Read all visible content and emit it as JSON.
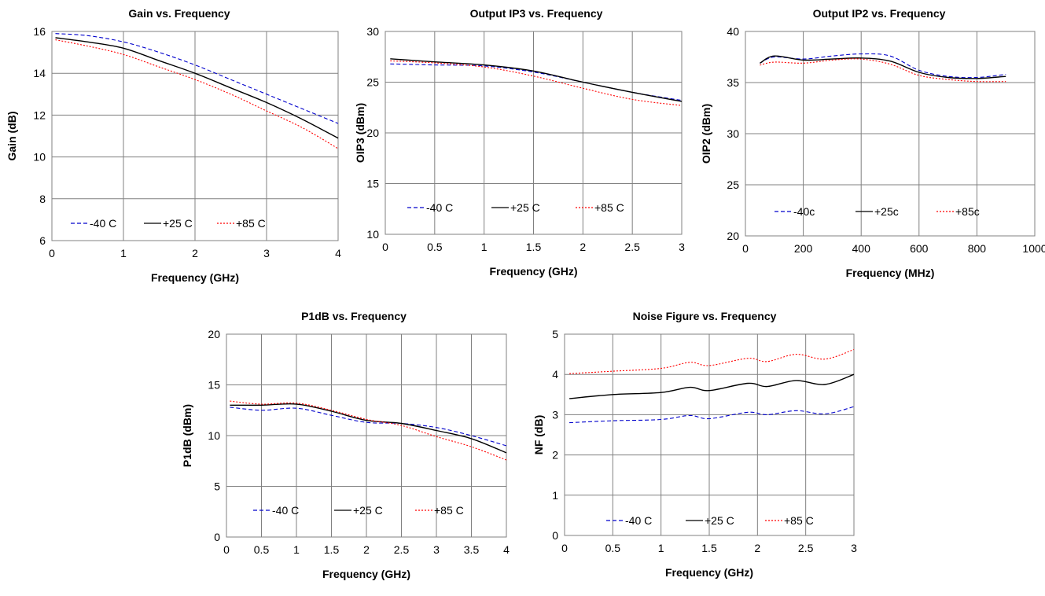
{
  "chart_data": [
    {
      "type": "line",
      "title": "Gain vs. Frequency",
      "xlabel": "Frequency (GHz)",
      "ylabel": "Gain (dB)",
      "xlim": [
        0,
        4
      ],
      "ylim": [
        6,
        16
      ],
      "xticks": [
        "0",
        "1",
        "2",
        "3",
        "4"
      ],
      "yticks": [
        "6",
        "8",
        "10",
        "12",
        "14",
        "16"
      ],
      "grid": true,
      "legend_position": "bottom-left",
      "x": [
        0.05,
        0.5,
        1.0,
        1.5,
        2.0,
        2.5,
        3.0,
        3.5,
        4.0
      ],
      "series": [
        {
          "name": "-40 C",
          "color": "#0000cc",
          "dash": "5,3",
          "values": [
            15.9,
            15.8,
            15.5,
            15.0,
            14.4,
            13.7,
            13.0,
            12.3,
            11.6
          ]
        },
        {
          "name": "+25 C",
          "color": "#000000",
          "dash": "",
          "values": [
            15.7,
            15.5,
            15.2,
            14.6,
            14.0,
            13.3,
            12.6,
            11.8,
            10.9
          ]
        },
        {
          "name": "+85 C",
          "color": "#ff0000",
          "dash": "2,2",
          "values": [
            15.6,
            15.3,
            14.9,
            14.3,
            13.7,
            13.0,
            12.2,
            11.4,
            10.4
          ]
        }
      ]
    },
    {
      "type": "line",
      "title": "Output IP3 vs. Frequency",
      "xlabel": "Frequency (GHz)",
      "ylabel": "OIP3 (dBm)",
      "xlim": [
        0,
        3
      ],
      "ylim": [
        10,
        30
      ],
      "xticks": [
        "0",
        "0.5",
        "1",
        "1.5",
        "2",
        "2.5",
        "3"
      ],
      "yticks": [
        "10",
        "15",
        "20",
        "25",
        "30"
      ],
      "grid": true,
      "legend_position": "bottom",
      "x": [
        0.05,
        0.5,
        1.0,
        1.5,
        2.0,
        2.5,
        3.0
      ],
      "series": [
        {
          "name": "-40 C",
          "color": "#0000cc",
          "dash": "5,3",
          "values": [
            26.8,
            26.7,
            26.6,
            26.0,
            25.0,
            24.0,
            23.2
          ]
        },
        {
          "name": "+25 C",
          "color": "#000000",
          "dash": "",
          "values": [
            27.3,
            27.0,
            26.7,
            26.1,
            25.0,
            24.0,
            23.1
          ]
        },
        {
          "name": "+85 C",
          "color": "#ff0000",
          "dash": "2,2",
          "values": [
            27.1,
            26.9,
            26.5,
            25.6,
            24.4,
            23.3,
            22.7
          ]
        }
      ]
    },
    {
      "type": "line",
      "title": "Output IP2 vs. Frequency",
      "xlabel": "Frequency (MHz)",
      "ylabel": "OIP2 (dBm)",
      "xlim": [
        0,
        1000
      ],
      "ylim": [
        20,
        40
      ],
      "xticks": [
        "0",
        "200",
        "400",
        "600",
        "800",
        "1000"
      ],
      "yticks": [
        "20",
        "25",
        "30",
        "35",
        "40"
      ],
      "grid": true,
      "legend_position": "bottom",
      "x": [
        50,
        100,
        200,
        300,
        400,
        500,
        600,
        700,
        800,
        900
      ],
      "series": [
        {
          "name": "-40c",
          "color": "#0000cc",
          "dash": "5,3",
          "values": [
            36.9,
            37.5,
            37.3,
            37.6,
            37.8,
            37.6,
            36.2,
            35.6,
            35.5,
            35.8
          ]
        },
        {
          "name": "+25c",
          "color": "#000000",
          "dash": "",
          "values": [
            36.9,
            37.6,
            37.2,
            37.3,
            37.4,
            37.1,
            36.0,
            35.5,
            35.4,
            35.6
          ]
        },
        {
          "name": "+85c",
          "color": "#ff0000",
          "dash": "2,2",
          "values": [
            36.7,
            37.0,
            36.9,
            37.2,
            37.3,
            36.8,
            35.7,
            35.3,
            35.1,
            35.1
          ]
        }
      ]
    },
    {
      "type": "line",
      "title": "P1dB vs. Frequency",
      "xlabel": "Frequency (GHz)",
      "ylabel": "P1dB (dBm)",
      "xlim": [
        0,
        4
      ],
      "ylim": [
        0,
        20
      ],
      "xticks": [
        "0",
        "0.5",
        "1",
        "1.5",
        "2",
        "2.5",
        "3",
        "3.5",
        "4"
      ],
      "yticks": [
        "0",
        "5",
        "10",
        "15",
        "20"
      ],
      "grid": true,
      "legend_position": "bottom",
      "x": [
        0.05,
        0.5,
        1.0,
        1.5,
        2.0,
        2.5,
        3.0,
        3.5,
        4.0
      ],
      "series": [
        {
          "name": "-40 C",
          "color": "#0000cc",
          "dash": "5,3",
          "values": [
            12.8,
            12.5,
            12.7,
            12.0,
            11.3,
            11.2,
            10.8,
            10.0,
            9.0
          ]
        },
        {
          "name": "+25 C",
          "color": "#000000",
          "dash": "",
          "values": [
            13.0,
            13.0,
            13.1,
            12.4,
            11.5,
            11.2,
            10.5,
            9.7,
            8.3
          ]
        },
        {
          "name": "+85 C",
          "color": "#ff0000",
          "dash": "2,2",
          "values": [
            13.4,
            13.1,
            13.2,
            12.5,
            11.6,
            11.0,
            9.9,
            8.9,
            7.6
          ]
        }
      ]
    },
    {
      "type": "line",
      "title": "Noise Figure vs. Frequency",
      "xlabel": "Frequency (GHz)",
      "ylabel": "NF (dB)",
      "xlim": [
        0,
        3
      ],
      "ylim": [
        0,
        5
      ],
      "xticks": [
        "0",
        "0.5",
        "1",
        "1.5",
        "2",
        "2.5",
        "3"
      ],
      "yticks": [
        "0",
        "1",
        "2",
        "3",
        "4",
        "5"
      ],
      "grid": true,
      "legend_position": "bottom",
      "x": [
        0.05,
        0.5,
        1.0,
        1.3,
        1.5,
        1.9,
        2.1,
        2.4,
        2.7,
        3.0
      ],
      "series": [
        {
          "name": "-40 C",
          "color": "#0000cc",
          "dash": "5,3",
          "values": [
            2.8,
            2.85,
            2.88,
            2.98,
            2.9,
            3.06,
            3.0,
            3.1,
            3.02,
            3.2
          ]
        },
        {
          "name": "+25 C",
          "color": "#000000",
          "dash": "",
          "values": [
            3.4,
            3.5,
            3.55,
            3.68,
            3.6,
            3.78,
            3.7,
            3.85,
            3.75,
            4.0
          ]
        },
        {
          "name": "+85 C",
          "color": "#ff0000",
          "dash": "2,2",
          "values": [
            4.02,
            4.08,
            4.15,
            4.3,
            4.22,
            4.4,
            4.32,
            4.5,
            4.38,
            4.62
          ]
        }
      ]
    }
  ]
}
